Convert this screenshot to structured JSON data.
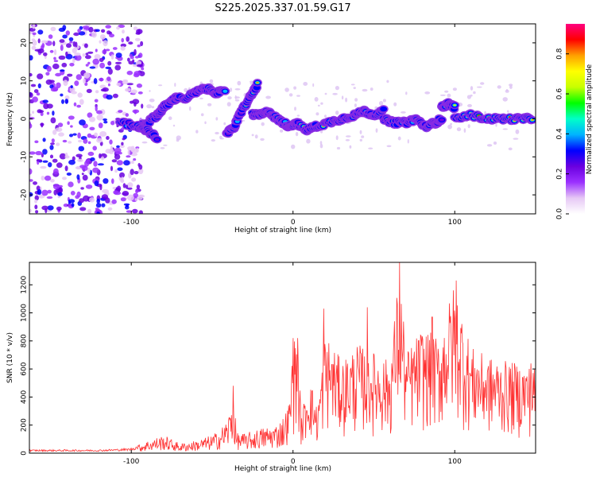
{
  "title": "S225.2025.337.01.59.G17",
  "chart_data": [
    {
      "type": "heatmap",
      "title": "",
      "xlabel": "Height of straight line (km)",
      "ylabel": "Frequency (Hz)",
      "xlim": [
        -163,
        150
      ],
      "ylim": [
        -25,
        25
      ],
      "x_ticks": [
        -100,
        0,
        100
      ],
      "x_tick_labels": [
        "-100",
        "0",
        "100"
      ],
      "y_ticks": [
        -20,
        -10,
        0,
        10,
        20
      ],
      "y_tick_labels": [
        "-20",
        "-10",
        "0",
        "10",
        "20"
      ],
      "colorbar": {
        "label": "Normalized spectral amplitude",
        "range": [
          0.0,
          0.95
        ],
        "ticks": [
          0.0,
          0.2,
          0.4,
          0.6,
          0.8
        ],
        "tick_labels": [
          "0.0",
          "0.2",
          "0.4",
          "0.6",
          "0.8"
        ],
        "colors": [
          "#ffffff",
          "#e6c8f5",
          "#9b30ff",
          "#6a00e0",
          "#0000ff",
          "#00b4ff",
          "#00ffc8",
          "#00ff00",
          "#c8ff00",
          "#ffff00",
          "#ffa000",
          "#ff0000",
          "#ff0080"
        ]
      },
      "ridge_segments": [
        {
          "x": [
            -107,
            -96,
            -90,
            -84,
            -80,
            -74,
            -70
          ],
          "f": [
            -1,
            -2,
            -1,
            1,
            3,
            5,
            6
          ]
        },
        {
          "x": [
            -68,
            -60,
            -54,
            -48,
            -42
          ],
          "f": [
            5,
            7,
            8,
            7,
            7
          ]
        },
        {
          "x": [
            -96,
            -90,
            -84
          ],
          "f": [
            -2,
            -3,
            -5
          ]
        },
        {
          "x": [
            -41,
            -36,
            -32,
            -26,
            -22
          ],
          "f": [
            -4,
            -2,
            2,
            6,
            9
          ]
        },
        {
          "x": [
            -25,
            -20,
            -15,
            -10,
            -6,
            -2,
            2,
            8,
            14
          ],
          "f": [
            1,
            1,
            2,
            0,
            -1,
            -2,
            -1,
            -3,
            -2
          ]
        },
        {
          "x": [
            14,
            22,
            30,
            38,
            44,
            50,
            56
          ],
          "f": [
            -2,
            -1,
            0,
            1,
            2,
            1,
            2
          ]
        },
        {
          "x": [
            56,
            62,
            70,
            76,
            82,
            88,
            92
          ],
          "f": [
            0,
            -1,
            -1,
            0,
            -2,
            -1,
            0
          ]
        },
        {
          "x": [
            92,
            96,
            100
          ],
          "f": [
            3,
            4,
            3
          ]
        },
        {
          "x": [
            100,
            110,
            120,
            130,
            140,
            148
          ],
          "f": [
            0,
            1,
            0,
            0,
            0,
            0
          ]
        }
      ]
    },
    {
      "type": "line",
      "title": "",
      "xlabel": "Height of straight line (km)",
      "ylabel": "SNR (10 * v/v)",
      "xlim": [
        -163,
        150
      ],
      "ylim": [
        0,
        1360
      ],
      "x_ticks": [
        -100,
        0,
        100
      ],
      "x_tick_labels": [
        "-100",
        "0",
        "100"
      ],
      "y_ticks": [
        0,
        200,
        400,
        600,
        800,
        1000,
        1200
      ],
      "y_tick_labels": [
        "0",
        "200",
        "400",
        "600",
        "800",
        "1000",
        "1200"
      ],
      "series": [
        {
          "name": "SNR",
          "color": "#ff3333",
          "envelope_x": [
            -163,
            -120,
            -100,
            -90,
            -80,
            -70,
            -60,
            -50,
            -45,
            -40,
            -37,
            -35,
            -30,
            -20,
            -10,
            -5,
            -2,
            0,
            3,
            5,
            10,
            15,
            20,
            30,
            40,
            50,
            60,
            66,
            70,
            80,
            90,
            100,
            110,
            120,
            130,
            140,
            150
          ],
          "envelope_y": [
            25,
            25,
            35,
            90,
            130,
            70,
            90,
            130,
            170,
            260,
            480,
            150,
            140,
            180,
            210,
            280,
            380,
            820,
            820,
            260,
            560,
            320,
            860,
            660,
            780,
            720,
            660,
            1350,
            720,
            900,
            820,
            1230,
            760,
            690,
            660,
            640,
            620
          ],
          "peaks": [
            {
              "x": -37,
              "y": 480
            },
            {
              "x": 0,
              "y": 820
            },
            {
              "x": 3,
              "y": 820
            },
            {
              "x": 19,
              "y": 1030
            },
            {
              "x": 46,
              "y": 1040
            },
            {
              "x": 66,
              "y": 1360
            },
            {
              "x": 86,
              "y": 970
            },
            {
              "x": 101,
              "y": 1230
            },
            {
              "x": 147,
              "y": 640
            }
          ]
        }
      ]
    }
  ]
}
